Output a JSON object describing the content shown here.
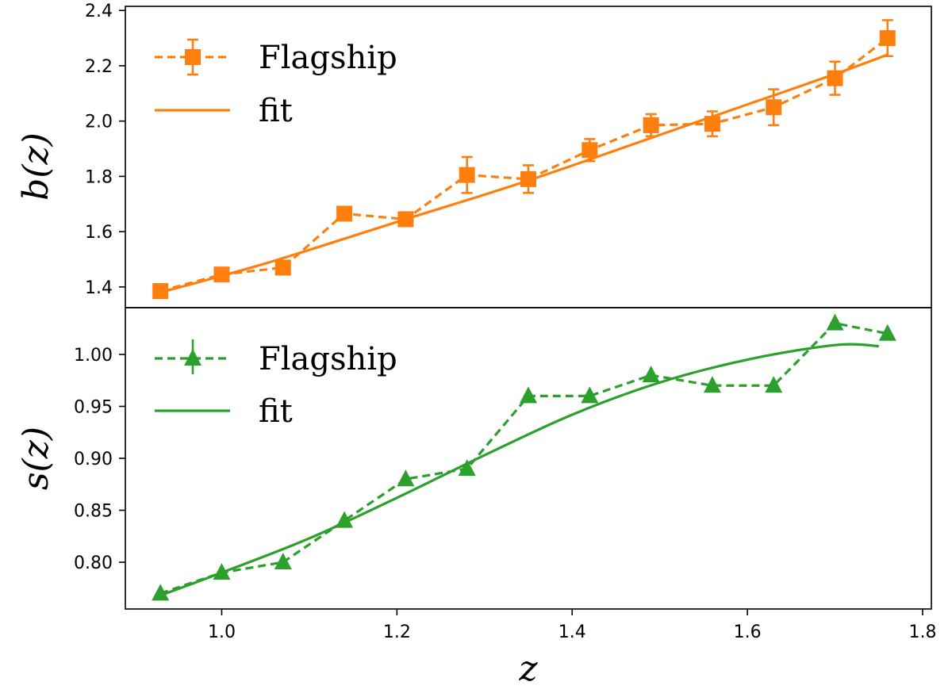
{
  "chart_data": [
    {
      "type": "line",
      "panel": "top",
      "xlabel": "",
      "ylabel": "b(z)",
      "xlim": [
        0.89,
        1.81
      ],
      "ylim": [
        1.325,
        2.415
      ],
      "yticks": [
        1.4,
        1.6,
        1.8,
        2.0,
        2.2,
        2.4
      ],
      "ytick_labels": [
        "1.4",
        "1.6",
        "1.8",
        "2.0",
        "2.2",
        "2.4"
      ],
      "grid": false,
      "legend_position": "top-left",
      "colors": {
        "series": "#ff7f0e"
      },
      "series": [
        {
          "name": "Flagship",
          "style": "dashed",
          "marker": "square",
          "x": [
            0.93,
            1.0,
            1.07,
            1.14,
            1.21,
            1.28,
            1.35,
            1.42,
            1.49,
            1.56,
            1.63,
            1.7,
            1.76
          ],
          "y": [
            1.385,
            1.445,
            1.47,
            1.665,
            1.645,
            1.805,
            1.79,
            1.895,
            1.985,
            1.99,
            2.05,
            2.155,
            2.3
          ],
          "yerr": [
            0.01,
            0.01,
            0.01,
            0.01,
            0.01,
            0.065,
            0.05,
            0.04,
            0.04,
            0.045,
            0.065,
            0.06,
            0.065
          ]
        },
        {
          "name": "fit",
          "style": "solid",
          "marker": "none",
          "x": [
            0.93,
            1.05,
            1.2,
            1.35,
            1.5,
            1.6,
            1.7,
            1.76
          ],
          "y": [
            1.38,
            1.485,
            1.635,
            1.785,
            1.95,
            2.06,
            2.17,
            2.24
          ]
        }
      ]
    },
    {
      "type": "line",
      "panel": "bottom",
      "xlabel": "z",
      "ylabel": "s(z)",
      "xlim": [
        0.89,
        1.81
      ],
      "ylim": [
        0.755,
        1.045
      ],
      "xticks": [
        1.0,
        1.2,
        1.4,
        1.6,
        1.8
      ],
      "xtick_labels": [
        "1.0",
        "1.2",
        "1.4",
        "1.6",
        "1.8"
      ],
      "yticks": [
        0.8,
        0.85,
        0.9,
        0.95,
        1.0
      ],
      "ytick_labels": [
        "0.80",
        "0.85",
        "0.90",
        "0.95",
        "1.00"
      ],
      "grid": false,
      "legend_position": "top-left",
      "colors": {
        "series": "#2ca02c"
      },
      "series": [
        {
          "name": "Flagship",
          "style": "dashed",
          "marker": "triangle",
          "x": [
            0.93,
            1.0,
            1.07,
            1.14,
            1.21,
            1.28,
            1.35,
            1.42,
            1.49,
            1.56,
            1.63,
            1.7,
            1.76
          ],
          "y": [
            0.77,
            0.79,
            0.8,
            0.84,
            0.88,
            0.89,
            0.96,
            0.96,
            0.98,
            0.97,
            0.97,
            1.03,
            1.02
          ]
        },
        {
          "name": "fit",
          "style": "solid",
          "marker": "none",
          "x": [
            0.93,
            1.0,
            1.1,
            1.2,
            1.3,
            1.4,
            1.5,
            1.6,
            1.7,
            1.75
          ],
          "y": [
            0.768,
            0.79,
            0.823,
            0.862,
            0.903,
            0.942,
            0.973,
            0.995,
            1.009,
            1.008
          ]
        }
      ]
    }
  ]
}
